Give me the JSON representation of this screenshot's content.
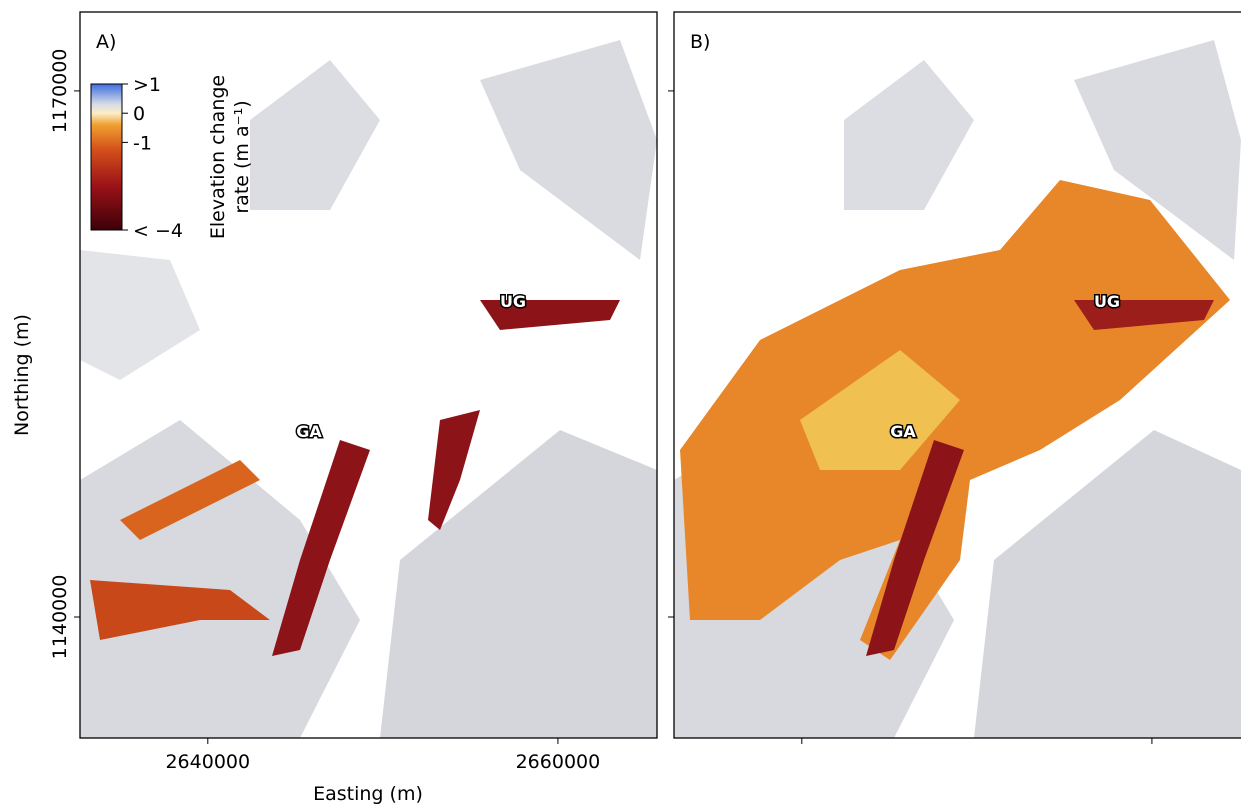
{
  "panels": [
    {
      "label": "A)",
      "annotations": [
        "GA",
        "UG"
      ]
    },
    {
      "label": "B)",
      "annotations": [
        "GA",
        "UG"
      ]
    }
  ],
  "x_axis": {
    "label": "Easting (m)",
    "lim": [
      2632700,
      2665660
    ],
    "ticks": [
      2640000,
      2660000
    ]
  },
  "y_axis": {
    "label": "Northing (m)",
    "lim": [
      1133100,
      1174500
    ],
    "ticks": [
      1140000,
      1170000
    ]
  },
  "colorbar": {
    "title": [
      "Elevation change",
      "rate (m a⁻¹)"
    ],
    "lim": [
      -4,
      1
    ],
    "ticks": [
      {
        "value": 1,
        "label": ">1"
      },
      0,
      -1,
      {
        "value": -4,
        "label": "< −4"
      }
    ]
  }
}
